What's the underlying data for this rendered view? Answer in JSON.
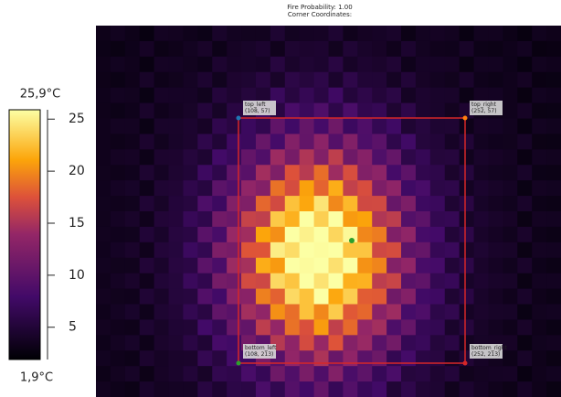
{
  "title": {
    "line1": "Fire Probability: 1.00",
    "line2": "Corner Coordinates:"
  },
  "colorbar": {
    "max_label": "25,9°C",
    "min_label": "1,9°C",
    "min": 1.9,
    "max": 25.9,
    "ticks": [
      5,
      10,
      15,
      20,
      25
    ]
  },
  "corners": [
    {
      "name": "top_left",
      "coords": "(108, 57)"
    },
    {
      "name": "top_right",
      "coords": "(252, 57)"
    },
    {
      "name": "bottom_left",
      "coords": "(108, 213)"
    },
    {
      "name": "bottom_right",
      "coords": "(252, 213)"
    }
  ]
}
